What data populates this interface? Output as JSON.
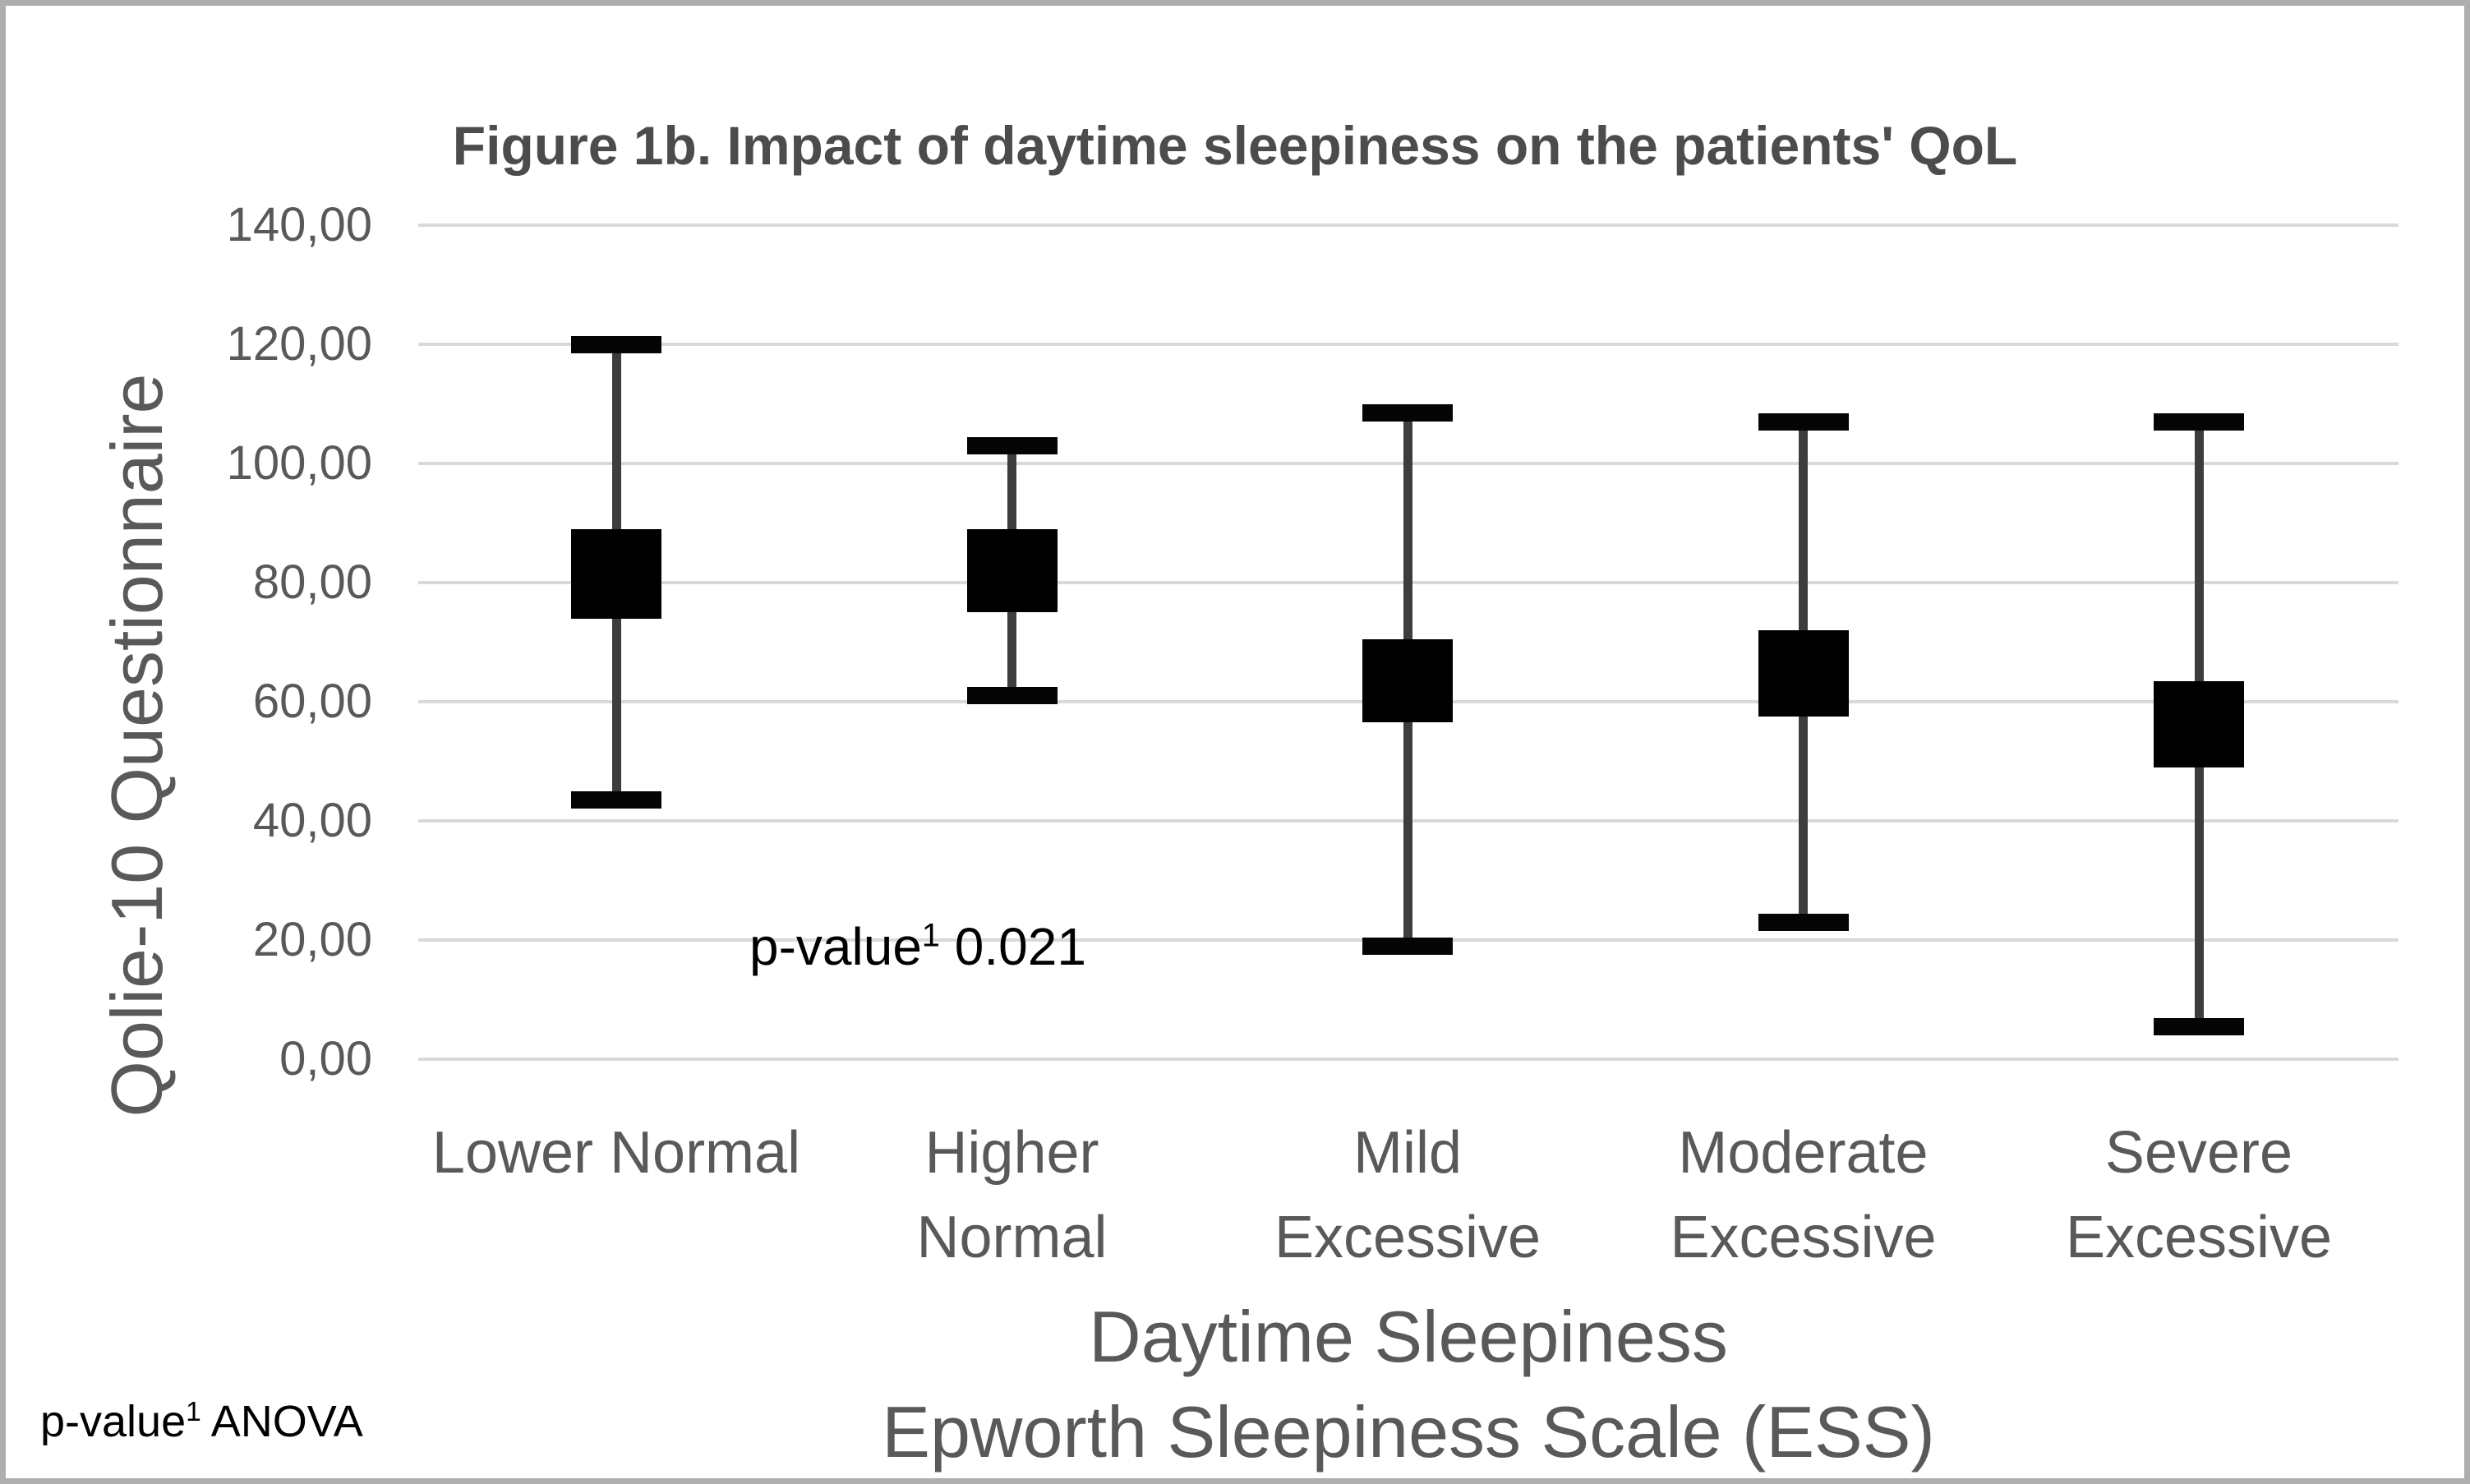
{
  "title": "Figure 1b. Impact of daytime sleepiness on the patients' QoL",
  "y_axis": {
    "title": "Qolie-10 Questionnaire"
  },
  "x_axis": {
    "title_line1": "Daytime Sleepiness",
    "title_line2": "Epworth Sleepiness Scale (ESS)"
  },
  "annotation": {
    "prefix": "p-value",
    "sup": "1",
    "value": " 0.021"
  },
  "footnote": {
    "prefix": "p-value",
    "sup": "1",
    "text": " ANOVA"
  },
  "colors": {
    "text_gray": "#595959",
    "title_gray": "#4c4c4c",
    "gridline": "#d9d9d9",
    "marker_black": "#050505",
    "stem_dark": "#3d3d3d",
    "frame_border": "#aeaeae"
  },
  "chart_data": {
    "type": "boxplot",
    "title": "Figure 1b. Impact of daytime sleepiness on the patients' QoL",
    "xlabel_line1": "Daytime Sleepiness",
    "xlabel_line2": "Epworth Sleepiness Scale (ESS)",
    "ylabel": "Qolie-10 Questionnaire",
    "ylim": [
      0,
      140
    ],
    "ytick_step": 20,
    "ytick_labels": [
      "0,00",
      "20,00",
      "40,00",
      "60,00",
      "80,00",
      "100,00",
      "120,00",
      "140,00"
    ],
    "grid": true,
    "legend": false,
    "p_value_annotation": "p-value¹ 0.021",
    "p_value": 0.021,
    "categories": [
      "Lower Normal",
      "Higher Normal",
      "Mild Excessive",
      "Moderate Excessive",
      "Severe Excessive"
    ],
    "category_label_lines": [
      [
        "Lower Normal"
      ],
      [
        "Higher",
        "Normal"
      ],
      [
        "Mild",
        "Excessive"
      ],
      [
        "Moderate",
        "Excessive"
      ],
      [
        "Severe",
        "Excessive"
      ]
    ],
    "series": [
      {
        "name": "Lower Normal",
        "whisker_low": 43.5,
        "box_low": 74,
        "box_high": 89,
        "whisker_high": 120,
        "mean": 81.5
      },
      {
        "name": "Higher Normal",
        "whisker_low": 61,
        "box_low": 75,
        "box_high": 89,
        "whisker_high": 103,
        "mean": 82
      },
      {
        "name": "Mild Excessive",
        "whisker_low": 19,
        "box_low": 56.5,
        "box_high": 70.5,
        "whisker_high": 108.5,
        "mean": 63.5
      },
      {
        "name": "Moderate Excessive",
        "whisker_low": 23,
        "box_low": 57.5,
        "box_high": 72,
        "whisker_high": 107,
        "mean": 65
      },
      {
        "name": "Severe Excessive",
        "whisker_low": 5.5,
        "box_low": 49,
        "box_high": 63.5,
        "whisker_high": 107,
        "mean": 56
      }
    ]
  }
}
